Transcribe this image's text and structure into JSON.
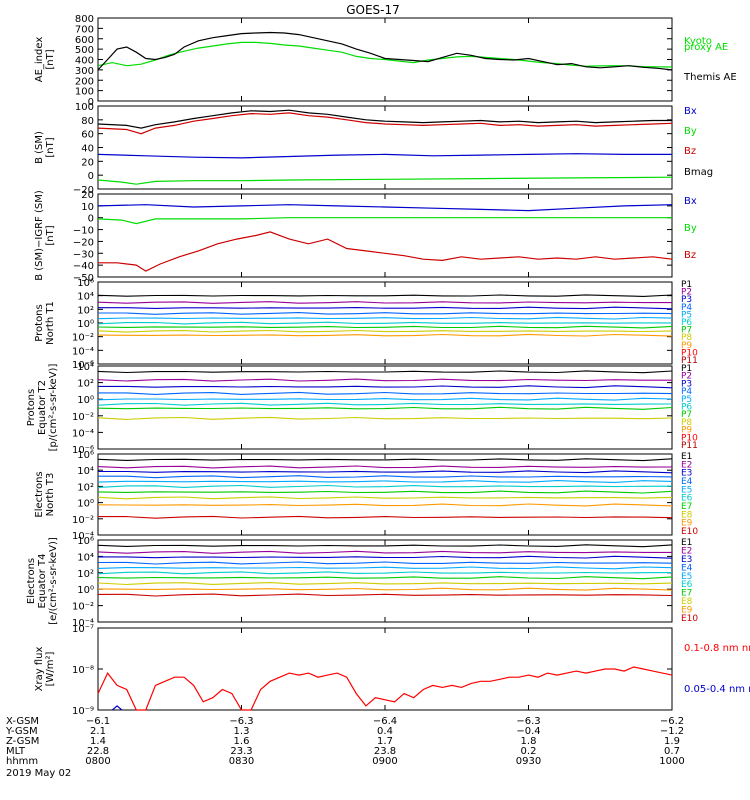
{
  "title": "GOES-17",
  "chart_data": [
    {
      "type": "line",
      "panel": "ae",
      "ylabel": [
        "AE_index",
        "[nT]"
      ],
      "ylim": [
        0,
        800
      ],
      "yticks": [
        "0",
        "100",
        "200",
        "300",
        "400",
        "500",
        "600",
        "700",
        "800"
      ],
      "series": [
        {
          "name": "Kyoto proxy AE",
          "legend": [
            "Kyoto",
            "proxy AE"
          ],
          "color": "#00dd00",
          "x": [
            0,
            3,
            6,
            9,
            12,
            15,
            18,
            21,
            24,
            27,
            30,
            33,
            36,
            39,
            42,
            45,
            48,
            51,
            54,
            57,
            60,
            63,
            66,
            69,
            72,
            75,
            78,
            81,
            84,
            87,
            90,
            93,
            96,
            99,
            102,
            105,
            108,
            111,
            114,
            117,
            120
          ],
          "y": [
            340,
            370,
            340,
            355,
            395,
            445,
            480,
            510,
            530,
            550,
            565,
            565,
            555,
            540,
            530,
            510,
            490,
            470,
            430,
            410,
            400,
            385,
            370,
            395,
            410,
            425,
            430,
            420,
            410,
            400,
            385,
            370,
            360,
            345,
            335,
            338,
            340,
            338,
            332,
            330,
            328
          ]
        },
        {
          "name": "Themis AE",
          "legend": [
            "Themis AE"
          ],
          "color": "#000000",
          "x": [
            0,
            2,
            4,
            6,
            8,
            10,
            12,
            14,
            16,
            18,
            21,
            24,
            27,
            30,
            33,
            36,
            39,
            42,
            45,
            48,
            51,
            54,
            57,
            60,
            63,
            66,
            69,
            72,
            75,
            78,
            81,
            84,
            87,
            90,
            93,
            96,
            99,
            102,
            105,
            108,
            111,
            114,
            117,
            120
          ],
          "y": [
            300,
            400,
            500,
            520,
            470,
            410,
            400,
            420,
            450,
            520,
            580,
            610,
            630,
            650,
            655,
            660,
            655,
            640,
            610,
            580,
            550,
            500,
            460,
            410,
            400,
            390,
            380,
            420,
            460,
            440,
            410,
            400,
            395,
            410,
            380,
            350,
            360,
            330,
            320,
            330,
            340,
            325,
            315,
            300
          ]
        }
      ]
    },
    {
      "type": "line",
      "panel": "bsm",
      "ylabel": [
        "B (SM)",
        "[nT]"
      ],
      "ylim": [
        -20,
        100
      ],
      "yticks": [
        "−20",
        "0",
        "20",
        "40",
        "60",
        "80",
        "100"
      ],
      "series": [
        {
          "name": "Bx",
          "color": "#0000cc",
          "x": [
            0,
            10,
            20,
            30,
            40,
            50,
            60,
            70,
            80,
            90,
            100,
            110,
            120
          ],
          "y": [
            30,
            28,
            26,
            25,
            27,
            29,
            30,
            28,
            29,
            30,
            31,
            30,
            30
          ]
        },
        {
          "name": "By",
          "color": "#00dd00",
          "x": [
            0,
            5,
            8,
            12,
            20,
            30,
            40,
            60,
            80,
            100,
            120
          ],
          "y": [
            -7,
            -10,
            -13,
            -9,
            -8,
            -8,
            -7,
            -6,
            -5,
            -4,
            -3
          ]
        },
        {
          "name": "Bz",
          "color": "#cc0000",
          "x": [
            0,
            6,
            9,
            12,
            16,
            20,
            24,
            28,
            32,
            36,
            40,
            44,
            48,
            52,
            56,
            60,
            64,
            68,
            72,
            76,
            80,
            84,
            88,
            92,
            96,
            100,
            104,
            108,
            112,
            116,
            120
          ],
          "y": [
            68,
            66,
            60,
            68,
            72,
            78,
            82,
            86,
            89,
            88,
            90,
            86,
            84,
            80,
            76,
            74,
            73,
            72,
            73,
            74,
            75,
            72,
            73,
            71,
            72,
            73,
            71,
            72,
            73,
            74,
            75
          ]
        },
        {
          "name": "Bmag",
          "color": "#000000",
          "x": [
            0,
            6,
            9,
            12,
            16,
            20,
            24,
            28,
            32,
            36,
            40,
            44,
            48,
            52,
            56,
            60,
            64,
            68,
            72,
            76,
            80,
            84,
            88,
            92,
            96,
            100,
            104,
            108,
            112,
            116,
            120
          ],
          "y": [
            74,
            72,
            68,
            73,
            77,
            82,
            86,
            90,
            93,
            92,
            94,
            90,
            88,
            84,
            80,
            78,
            77,
            76,
            77,
            78,
            79,
            77,
            78,
            76,
            77,
            78,
            76,
            77,
            78,
            79,
            79
          ]
        }
      ]
    },
    {
      "type": "line",
      "panel": "bsm_igrf",
      "ylabel": [
        "B (SM)−IGRF (SM)",
        "[nT]"
      ],
      "ylim": [
        -50,
        20
      ],
      "yticks": [
        "−50",
        "−40",
        "−30",
        "−20",
        "−10",
        "0",
        "10",
        "20"
      ],
      "series": [
        {
          "name": "Bx",
          "color": "#0000cc",
          "x": [
            0,
            10,
            20,
            30,
            40,
            50,
            60,
            70,
            80,
            90,
            100,
            110,
            120
          ],
          "y": [
            10,
            11,
            9,
            10,
            11,
            10,
            9,
            8,
            7,
            6,
            8,
            10,
            11
          ]
        },
        {
          "name": "By",
          "color": "#00dd00",
          "x": [
            0,
            5,
            8,
            12,
            20,
            30,
            40,
            60,
            80,
            100,
            120
          ],
          "y": [
            -1,
            -2,
            -5,
            -1,
            -1,
            -1,
            0,
            0,
            0,
            0,
            0
          ]
        },
        {
          "name": "Bz",
          "color": "#cc0000",
          "x": [
            0,
            4,
            8,
            10,
            13,
            17,
            21,
            25,
            29,
            33,
            36,
            40,
            44,
            48,
            52,
            56,
            60,
            64,
            68,
            72,
            76,
            80,
            84,
            88,
            92,
            96,
            100,
            104,
            108,
            112,
            116,
            120
          ],
          "y": [
            -38,
            -38,
            -40,
            -45,
            -39,
            -33,
            -28,
            -22,
            -18,
            -15,
            -12,
            -18,
            -22,
            -18,
            -26,
            -28,
            -30,
            -32,
            -35,
            -36,
            -33,
            -35,
            -34,
            -33,
            -35,
            -34,
            -35,
            -33,
            -35,
            -34,
            -33,
            -35
          ]
        }
      ]
    },
    {
      "type": "line",
      "panel": "protons_t1",
      "ylabel": [
        "Protons",
        "North T1"
      ],
      "ylog": true,
      "ylim": [
        -6,
        6
      ],
      "yticks": [
        "10⁻⁶",
        "10⁻⁴",
        "10⁻²",
        "10⁰",
        "10²",
        "10⁴",
        "10⁶"
      ],
      "series": [
        {
          "name": "P1",
          "color": "#000000",
          "level": 4.0
        },
        {
          "name": "P2",
          "color": "#990099",
          "level": 3.0
        },
        {
          "name": "P3",
          "color": "#0000cc",
          "level": 2.2
        },
        {
          "name": "P4",
          "color": "#0066ff",
          "level": 1.4
        },
        {
          "name": "P5",
          "color": "#00aaff",
          "level": 0.7
        },
        {
          "name": "P6",
          "color": "#00cccc",
          "level": 0.0
        },
        {
          "name": "P7",
          "color": "#00cc00",
          "level": -0.6
        },
        {
          "name": "P8",
          "color": "#cccc00",
          "level": -1.2
        },
        {
          "name": "P9",
          "color": "#ff9900",
          "level": -1.8
        },
        {
          "name": "P10",
          "color": "#ff0000",
          "level": null
        },
        {
          "name": "P11",
          "color": "#aa0000",
          "level": null
        }
      ]
    },
    {
      "type": "line",
      "panel": "protons_t2",
      "ylabel": [
        "Protons",
        "Equator T2",
        "[p/(cm²-s-sr-keV)]"
      ],
      "ylog": true,
      "ylim": [
        -6,
        4
      ],
      "yticks": [
        "10⁻⁶",
        "10⁻⁴",
        "10⁻²",
        "10⁰",
        "10²",
        "10⁴"
      ],
      "series": [
        {
          "name": "P1",
          "color": "#000000",
          "level": 3.3
        },
        {
          "name": "P2",
          "color": "#990099",
          "level": 2.3
        },
        {
          "name": "P3",
          "color": "#0000cc",
          "level": 1.5
        },
        {
          "name": "P4",
          "color": "#0066ff",
          "level": 0.7
        },
        {
          "name": "P5",
          "color": "#00aaff",
          "level": 0.0
        },
        {
          "name": "P6",
          "color": "#00cccc",
          "level": -0.6
        },
        {
          "name": "P7",
          "color": "#00cc00",
          "level": -1.1
        },
        {
          "name": "P8",
          "color": "#cccc00",
          "level": -2.3
        },
        {
          "name": "P9",
          "color": "#ff9900",
          "level": null
        },
        {
          "name": "P10",
          "color": "#ff0000",
          "level": null
        },
        {
          "name": "P11",
          "color": "#aa0000",
          "level": null
        }
      ]
    },
    {
      "type": "line",
      "panel": "electrons_t3",
      "ylabel": [
        "Electrons",
        "North T3"
      ],
      "ylog": true,
      "ylim": [
        -4,
        6
      ],
      "yticks": [
        "10⁻⁴",
        "10⁻²",
        "10⁰",
        "10²",
        "10⁴",
        "10⁶"
      ],
      "series": [
        {
          "name": "E1",
          "color": "#000000",
          "level": 5.3
        },
        {
          "name": "E2",
          "color": "#990099",
          "level": 4.4
        },
        {
          "name": "E3",
          "color": "#0000cc",
          "level": 3.8
        },
        {
          "name": "E4",
          "color": "#0066ff",
          "level": 3.2
        },
        {
          "name": "E5",
          "color": "#00aaff",
          "level": 2.6
        },
        {
          "name": "E6",
          "color": "#00cccc",
          "level": 2.0
        },
        {
          "name": "E7",
          "color": "#00cc00",
          "level": 1.3
        },
        {
          "name": "E8",
          "color": "#cccc00",
          "level": 0.6
        },
        {
          "name": "E9",
          "color": "#ff9900",
          "level": -0.3
        },
        {
          "name": "E10",
          "color": "#cc0000",
          "level": -1.8
        }
      ]
    },
    {
      "type": "line",
      "panel": "electrons_t4",
      "ylabel": [
        "Electrons",
        "Equator T4",
        "[e/(cm²-s-sr-keV)]"
      ],
      "ylog": true,
      "ylim": [
        -4,
        6
      ],
      "yticks": [
        "10⁻⁴",
        "10⁻²",
        "10⁰",
        "10²",
        "10⁴",
        "10⁶"
      ],
      "series": [
        {
          "name": "E1",
          "color": "#000000",
          "level": 5.3
        },
        {
          "name": "E2",
          "color": "#990099",
          "level": 4.5
        },
        {
          "name": "E3",
          "color": "#0000cc",
          "level": 3.9
        },
        {
          "name": "E4",
          "color": "#0066ff",
          "level": 3.2
        },
        {
          "name": "E5",
          "color": "#00aaff",
          "level": 2.6
        },
        {
          "name": "E6",
          "color": "#00cccc",
          "level": 2.0
        },
        {
          "name": "E7",
          "color": "#00cc00",
          "level": 1.4
        },
        {
          "name": "E8",
          "color": "#cccc00",
          "level": 0.7
        },
        {
          "name": "E9",
          "color": "#ff9900",
          "level": 0.0
        },
        {
          "name": "E10",
          "color": "#cc0000",
          "level": -0.7
        }
      ]
    },
    {
      "type": "line",
      "panel": "xray",
      "ylabel": [
        "Xray flux",
        "[W/m²]"
      ],
      "ylog": true,
      "ylim": [
        -9,
        -7
      ],
      "yticks": [
        "10⁻⁹",
        "10⁻⁸",
        "10⁻⁷"
      ],
      "series": [
        {
          "name": "0.1-0.8 nm",
          "color": "#ff0000",
          "x": [
            0,
            2,
            4,
            6,
            8,
            10,
            12,
            14,
            16,
            18,
            20,
            22,
            24,
            26,
            28,
            30,
            32,
            34,
            36,
            38,
            40,
            42,
            44,
            46,
            48,
            50,
            52,
            54,
            56,
            58,
            60,
            62,
            64,
            66,
            68,
            70,
            72,
            74,
            76,
            78,
            80,
            82,
            84,
            86,
            88,
            90,
            92,
            94,
            96,
            98,
            100,
            102,
            104,
            106,
            108,
            110,
            112,
            114,
            116,
            118,
            120
          ],
          "y": [
            -8.6,
            -8.1,
            -8.4,
            -8.5,
            -9.0,
            -9.0,
            -8.4,
            -8.3,
            -8.2,
            -8.2,
            -8.4,
            -8.8,
            -8.7,
            -8.5,
            -8.6,
            -9.0,
            -9.0,
            -8.5,
            -8.3,
            -8.2,
            -8.1,
            -8.15,
            -8.1,
            -8.2,
            -8.15,
            -8.1,
            -8.2,
            -8.6,
            -8.9,
            -8.7,
            -8.75,
            -8.8,
            -8.6,
            -8.7,
            -8.5,
            -8.4,
            -8.45,
            -8.4,
            -8.45,
            -8.35,
            -8.3,
            -8.3,
            -8.25,
            -8.2,
            -8.2,
            -8.15,
            -8.2,
            -8.1,
            -8.15,
            -8.1,
            -8.05,
            -8.1,
            -8.05,
            -8.0,
            -8.0,
            -8.05,
            -7.95,
            -8.0,
            -8.05,
            -8.1,
            -8.15
          ]
        },
        {
          "name": "0.05-0.4 nm",
          "color": "#0000cc",
          "x": [
            3,
            4,
            5
          ],
          "y": [
            -9.0,
            -8.9,
            -9.0
          ]
        }
      ]
    }
  ],
  "xaxis": {
    "rows": [
      {
        "label": "X-GSM",
        "values": [
          "−6.1",
          "−6.3",
          "−6.4",
          "−6.3",
          "−6.2"
        ]
      },
      {
        "label": "Y-GSM",
        "values": [
          "2.1",
          "1.3",
          "0.4",
          "−0.4",
          "−1.2"
        ]
      },
      {
        "label": "Z-GSM",
        "values": [
          "1.4",
          "1.6",
          "1.7",
          "1.8",
          "1.9"
        ]
      },
      {
        "label": "MLT",
        "values": [
          "22.8",
          "23.3",
          "23.8",
          "0.2",
          "0.7"
        ]
      },
      {
        "label": "hhmm",
        "values": [
          "0800",
          "0830",
          "0900",
          "0930",
          "1000"
        ]
      }
    ],
    "date": "2019 May 02",
    "tick_minutes": [
      0,
      30,
      60,
      90,
      120
    ]
  }
}
